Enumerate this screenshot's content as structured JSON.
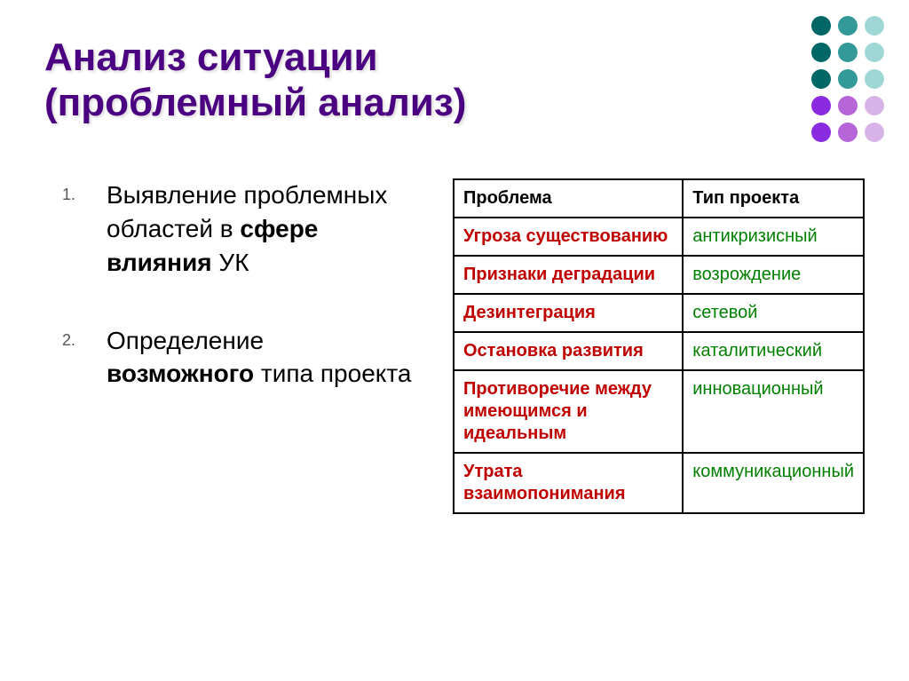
{
  "title_line1": "Анализ ситуации",
  "title_line2": "(проблемный анализ)",
  "list_items": [
    {
      "pre": "Выявление проблемных областей в ",
      "bold": "сфере влияния",
      "post": "   УК"
    },
    {
      "pre": "Определение ",
      "bold": "возможного",
      "post": " типа проекта"
    }
  ],
  "table": {
    "headers": [
      "Проблема",
      "Тип проекта"
    ],
    "rows": [
      {
        "problem": "Угроза существованию",
        "type": "антикризисный"
      },
      {
        "problem": "Признаки деградации",
        "type": "возрождение"
      },
      {
        "problem": "Дезинтеграция",
        "type": "сетевой"
      },
      {
        "problem": "Остановка развития",
        "type": "каталитический"
      },
      {
        "problem": "Противоречие между имеющимся и  идеальным",
        "type": "инновационный"
      },
      {
        "problem": "Утрата взаимопонимания",
        "type": "коммуникационный"
      }
    ],
    "problem_color": "#c00000",
    "type_color": "#008000"
  },
  "decoration": {
    "dot_colors": [
      "#006666",
      "#339999",
      "#9fd7d7",
      "#006666",
      "#339999",
      "#9fd7d7",
      "#006666",
      "#339999",
      "#9fd7d7",
      "#8a2be2",
      "#b565d8",
      "#d8b3e8",
      "#8a2be2",
      "#b565d8",
      "#d8b3e8"
    ]
  },
  "colors": {
    "title": "#4b0082",
    "background": "#ffffff"
  }
}
